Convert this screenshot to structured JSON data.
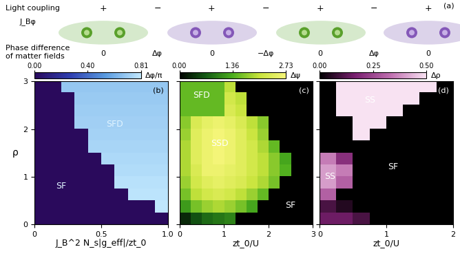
{
  "schematic": {
    "panel": "(a)",
    "row_labels": [
      "Light coupling",
      "J_Bφ",
      "Phase difference\nof matter fields"
    ],
    "couplings": [
      "+",
      "−",
      "+",
      "−",
      "+",
      "−",
      "+"
    ],
    "phase_differences": [
      "0",
      "Δφ",
      "0",
      "−Δφ",
      "0",
      "Δφ",
      "0"
    ]
  },
  "chart_data": [
    {
      "type": "heatmap",
      "panel": "(b)",
      "x_label": "J_B^2 N_s|g_eff|/zt_0",
      "y_label": "ρ",
      "xlim": [
        0,
        1.0
      ],
      "ylim": [
        0,
        3
      ],
      "xticks": [
        0,
        0.5,
        {
          "value": 1.0,
          "label": "1.0"
        }
      ],
      "yticks": [
        0,
        1,
        2,
        3
      ],
      "colorbar": {
        "label": "Δφ/π",
        "range": [
          0,
          0.81
        ],
        "ticks": [
          {
            "value": 0,
            "label": "0.00"
          },
          {
            "value": 0.4,
            "label": "0.40"
          },
          {
            "value": 0.81,
            "label": "0.81"
          }
        ]
      },
      "annotations": [
        {
          "text": "SFD",
          "x": 0.6,
          "y": 2.1
        },
        {
          "text": "SF",
          "x": 0.2,
          "y": 0.8
        }
      ],
      "cells": [
        [
          0,
          0,
          0,
          0,
          0,
          0,
          0,
          0,
          0,
          0
        ],
        [
          0,
          0,
          0,
          0,
          0,
          0,
          0,
          0,
          0,
          0.8
        ],
        [
          0,
          0,
          0,
          0,
          0,
          0,
          0,
          0.79,
          0.79,
          0.79
        ],
        [
          0,
          0,
          0,
          0,
          0,
          0,
          0.78,
          0.78,
          0.78,
          0.78
        ],
        [
          0,
          0,
          0,
          0,
          0,
          0,
          0.76,
          0.76,
          0.76,
          0.76
        ],
        [
          0,
          0,
          0,
          0,
          0,
          0.75,
          0.75,
          0.75,
          0.75,
          0.75
        ],
        [
          0,
          0,
          0,
          0,
          0.74,
          0.74,
          0.74,
          0.74,
          0.74,
          0.74
        ],
        [
          0,
          0,
          0,
          0,
          0.73,
          0.73,
          0.73,
          0.73,
          0.73,
          0.73
        ],
        [
          0,
          0,
          0,
          0.72,
          0.72,
          0.72,
          0.72,
          0.72,
          0.72,
          0.72
        ],
        [
          0,
          0,
          0,
          0.71,
          0.71,
          0.71,
          0.71,
          0.71,
          0.71,
          0.71
        ],
        [
          0,
          0,
          0,
          0.7,
          0.7,
          0.7,
          0.7,
          0.7,
          0.7,
          0.7
        ],
        [
          0,
          0,
          0.69,
          0.69,
          0.69,
          0.69,
          0.69,
          0.69,
          0.69,
          0.69
        ]
      ]
    },
    {
      "type": "heatmap",
      "panel": "(c)",
      "x_label": "zt_0/U",
      "xlim": [
        0,
        3
      ],
      "ylim": [
        0,
        3
      ],
      "xticks": [
        0,
        1,
        2,
        3
      ],
      "yticks": [
        0,
        1,
        2,
        3
      ],
      "tick_labels": "x",
      "colorbar": {
        "label": "Δψ",
        "range": [
          0,
          2.73
        ],
        "ticks": [
          {
            "value": 0,
            "label": "0.00"
          },
          {
            "value": 1.36,
            "label": "1.36"
          },
          {
            "value": 2.73,
            "label": "2.73"
          }
        ]
      },
      "annotations": [
        {
          "text": "SFD",
          "x": 0.5,
          "y": 2.7
        },
        {
          "text": "SSD",
          "x": 0.9,
          "y": 1.7
        },
        {
          "text": "SF",
          "x": 2.5,
          "y": 0.4
        }
      ],
      "cells": [
        [
          0.3,
          0.6,
          0.8,
          0.9,
          1.0,
          0,
          0,
          0,
          0,
          0,
          0,
          0
        ],
        [
          1.2,
          1.6,
          1.8,
          1.9,
          1.8,
          1.6,
          1.3,
          0,
          0,
          0,
          0,
          0
        ],
        [
          1.6,
          2.0,
          2.2,
          2.3,
          2.2,
          2.0,
          1.8,
          1.5,
          0,
          0,
          0,
          0
        ],
        [
          1.8,
          2.2,
          2.4,
          2.5,
          2.4,
          2.3,
          2.1,
          1.9,
          1.6,
          0,
          0,
          0
        ],
        [
          1.9,
          2.3,
          2.6,
          2.6,
          2.5,
          2.4,
          2.2,
          2.0,
          1.7,
          1.4,
          0,
          0
        ],
        [
          1.9,
          2.4,
          2.6,
          2.7,
          2.6,
          2.4,
          2.2,
          2.0,
          1.7,
          1.3,
          0,
          0
        ],
        [
          1.9,
          2.4,
          2.6,
          2.7,
          2.6,
          2.4,
          2.2,
          1.9,
          1.5,
          0,
          0,
          0
        ],
        [
          1.8,
          2.4,
          2.6,
          2.7,
          2.6,
          2.4,
          2.1,
          1.8,
          0,
          0,
          0,
          0
        ],
        [
          1.7,
          2.3,
          2.5,
          2.6,
          2.5,
          2.3,
          2.0,
          1.7,
          0,
          0,
          0,
          0
        ],
        [
          1.5,
          1.5,
          1.5,
          1.5,
          2.3,
          2.1,
          0,
          0,
          0,
          0,
          0,
          0
        ],
        [
          1.5,
          1.5,
          1.5,
          1.5,
          2.2,
          2.0,
          0,
          0,
          0,
          0,
          0,
          0
        ],
        [
          1.5,
          1.5,
          1.5,
          1.5,
          2.0,
          0,
          0,
          0,
          0,
          0,
          0,
          0
        ]
      ]
    },
    {
      "type": "heatmap",
      "panel": "(d)",
      "x_label": "zt_0/U",
      "xlim": [
        0,
        2
      ],
      "ylim": [
        0,
        3
      ],
      "xticks": [
        0,
        1,
        2
      ],
      "yticks": [
        0,
        1,
        2,
        3
      ],
      "tick_labels": "x",
      "colorbar": {
        "label": "Δρ",
        "range": [
          0,
          0.5
        ],
        "ticks": [
          {
            "value": 0,
            "label": "0.00"
          },
          {
            "value": 0.25,
            "label": "0.25"
          },
          {
            "value": 0.5,
            "label": "0.50"
          }
        ]
      },
      "annotations": [
        {
          "text": "SS",
          "x": 0.75,
          "y": 2.6
        },
        {
          "text": "SS",
          "x": 0.15,
          "y": 1.0
        },
        {
          "text": "SF",
          "x": 1.1,
          "y": 1.2
        }
      ],
      "cells": [
        [
          0.15,
          0.15,
          0.1,
          0,
          0,
          0,
          0,
          0
        ],
        [
          0.1,
          0.05,
          0,
          0,
          0,
          0,
          0,
          0
        ],
        [
          0.3,
          0,
          0,
          0,
          0,
          0,
          0,
          0
        ],
        [
          0.4,
          0.3,
          0,
          0,
          0,
          0,
          0,
          0
        ],
        [
          0.4,
          0.35,
          0,
          0,
          0,
          0,
          0,
          0
        ],
        [
          0.35,
          0.2,
          0,
          0,
          0,
          0,
          0,
          0
        ],
        [
          0,
          0,
          0,
          0,
          0,
          0,
          0,
          0
        ],
        [
          0,
          0,
          0.5,
          0,
          0,
          0,
          0,
          0
        ],
        [
          0,
          0,
          0.5,
          0.5,
          0,
          0,
          0,
          0
        ],
        [
          0,
          0.5,
          0.5,
          0.5,
          0.5,
          0,
          0,
          0
        ],
        [
          0,
          0.5,
          0.5,
          0.5,
          0.5,
          0.5,
          0,
          0
        ],
        [
          0,
          0.5,
          0.5,
          0.5,
          0.5,
          0.5,
          0.5,
          0
        ]
      ]
    }
  ]
}
